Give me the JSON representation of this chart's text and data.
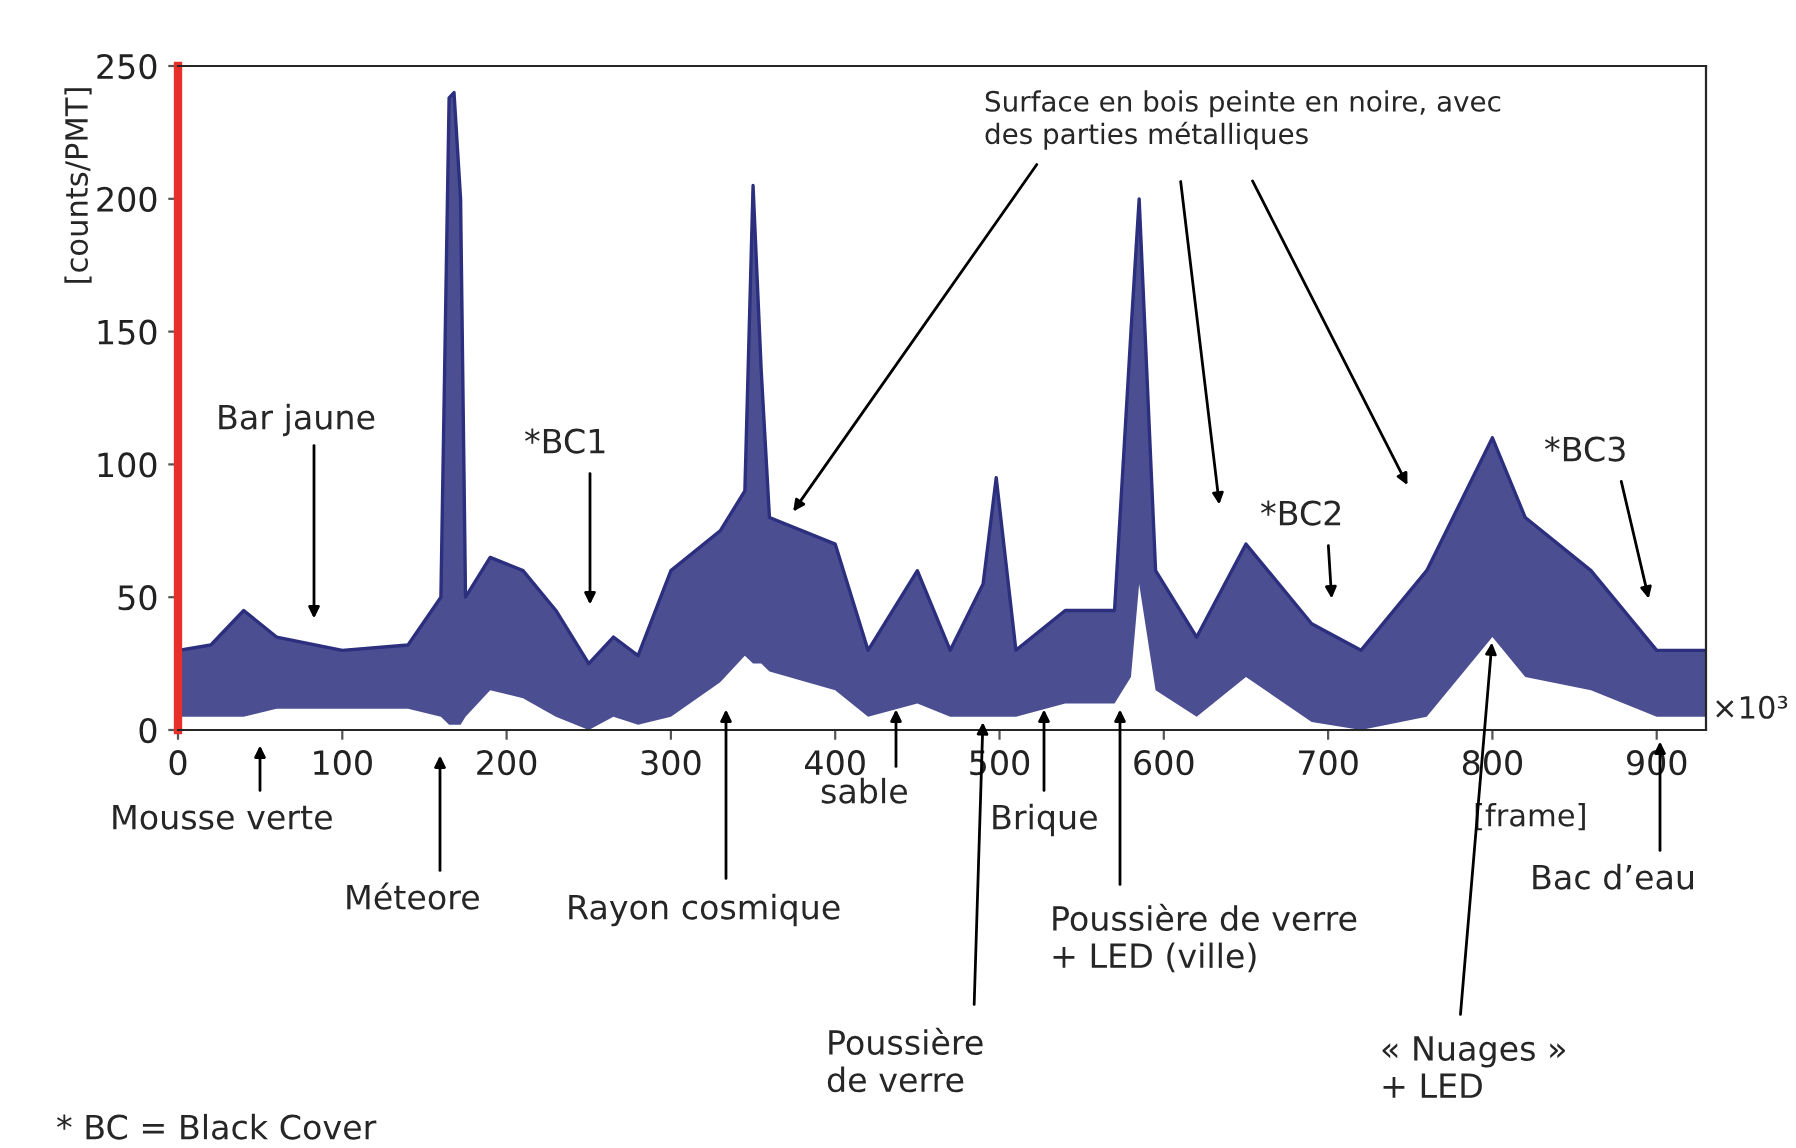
{
  "chart_data": {
    "type": "line",
    "xlabel": "[frame]",
    "ylabel": "[counts/PMT]",
    "xlim": [
      0,
      930
    ],
    "ylim": [
      0,
      250
    ],
    "xticks": [
      0,
      100,
      200,
      300,
      400,
      500,
      600,
      700,
      800,
      900
    ],
    "yticks": [
      0,
      50,
      100,
      150,
      200,
      250
    ],
    "grid": false,
    "series": [
      {
        "color": "#2b2f7e",
        "x": [
          0,
          20,
          40,
          60,
          100,
          140,
          160,
          165,
          168,
          172,
          175,
          190,
          210,
          230,
          250,
          265,
          280,
          300,
          330,
          345,
          350,
          355,
          360,
          400,
          420,
          450,
          470,
          490,
          498,
          510,
          540,
          570,
          580,
          585,
          595,
          620,
          650,
          690,
          720,
          760,
          800,
          820,
          860,
          900,
          930
        ],
        "values": [
          30,
          32,
          45,
          35,
          30,
          32,
          50,
          238,
          240,
          200,
          50,
          65,
          60,
          45,
          25,
          35,
          28,
          60,
          75,
          90,
          205,
          135,
          80,
          70,
          30,
          60,
          30,
          55,
          95,
          30,
          45,
          45,
          150,
          200,
          60,
          35,
          70,
          40,
          30,
          60,
          110,
          80,
          60,
          30,
          30
        ],
        "upper": [
          30,
          32,
          45,
          35,
          30,
          32,
          50,
          238,
          240,
          200,
          50,
          65,
          60,
          45,
          25,
          35,
          28,
          60,
          75,
          90,
          205,
          135,
          80,
          70,
          30,
          60,
          30,
          55,
          95,
          30,
          45,
          45,
          150,
          200,
          60,
          35,
          70,
          40,
          30,
          60,
          110,
          80,
          60,
          30,
          30
        ],
        "lower": [
          5,
          5,
          5,
          8,
          8,
          8,
          5,
          2,
          2,
          2,
          5,
          15,
          12,
          5,
          0,
          5,
          2,
          5,
          18,
          28,
          25,
          25,
          22,
          15,
          5,
          10,
          5,
          5,
          5,
          5,
          10,
          10,
          20,
          55,
          15,
          5,
          20,
          3,
          0,
          5,
          35,
          20,
          15,
          5,
          5
        ]
      }
    ],
    "annotations": [
      "Bar jaune",
      "*BC1",
      "Surface en bois peinte en noire, avec\ndes parties métalliques",
      "*BC2",
      "*BC3",
      "Mousse verte",
      "Méteore",
      "Rayon cosmique",
      "sable",
      {
        "text": "Poussière\nde verre",
        "x": 490,
        "y": 5
      },
      "Brique",
      "Poussière de verre\n+ LED (ville)",
      {
        "text": "« Nuages »\n+ LED",
        "x": 800,
        "y": 35
      },
      "Bac d’eau",
      "* BC = Black Cover",
      "×10³"
    ]
  }
}
